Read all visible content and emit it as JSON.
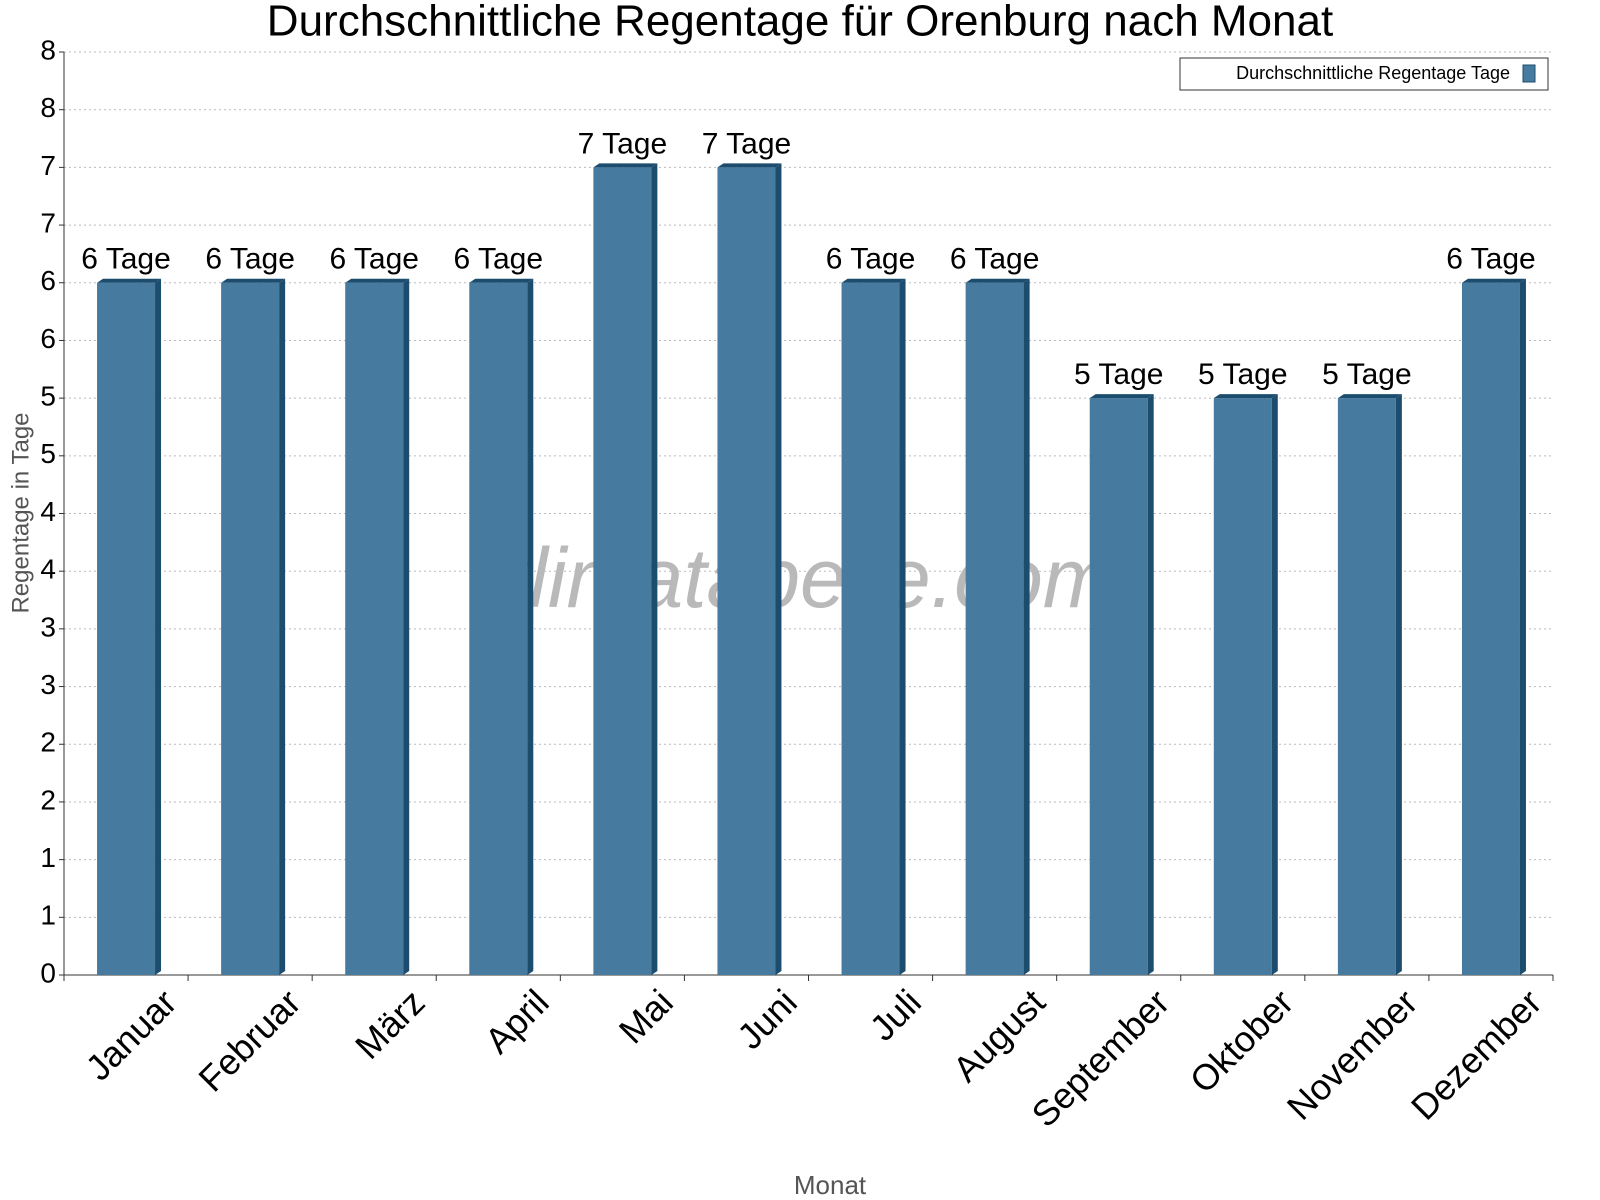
{
  "chart_data": {
    "type": "bar",
    "title": "Durchschnittliche Regentage für Orenburg nach Monat",
    "x_label": "Monat",
    "y_label": "Regentage in Tage",
    "watermark": "klimatabelle.com",
    "categories": [
      "Januar",
      "Februar",
      "März",
      "April",
      "Mai",
      "Juni",
      "Juli",
      "August",
      "September",
      "Oktober",
      "November",
      "Dezember"
    ],
    "series": [
      {
        "name": "Durchschnittliche Regentage Tage",
        "color": "#467b9f",
        "values": [
          6,
          6,
          6,
          6,
          7,
          7,
          6,
          6,
          5,
          5,
          5,
          6
        ],
        "value_labels": [
          "6 Tage",
          "6 Tage",
          "6 Tage",
          "6 Tage",
          "7 Tage",
          "7 Tage",
          "6 Tage",
          "6 Tage",
          "5 Tage",
          "5 Tage",
          "5 Tage",
          "6 Tage"
        ]
      }
    ],
    "ylim": [
      0,
      8
    ],
    "yticks": [
      0,
      {
        "value": 0.5,
        "label": "1"
      },
      1,
      {
        "value": 1.5,
        "label": "2"
      },
      2,
      {
        "value": 2.5,
        "label": "3"
      },
      3,
      {
        "value": 3.5,
        "label": "4"
      },
      4,
      {
        "value": 4.5,
        "label": "5"
      },
      5,
      {
        "value": 5.5,
        "label": "6"
      },
      6,
      {
        "value": 6.5,
        "label": "7"
      },
      7,
      {
        "value": 7.5,
        "label": "8"
      },
      8
    ],
    "grid": true,
    "legend": "top-right"
  }
}
